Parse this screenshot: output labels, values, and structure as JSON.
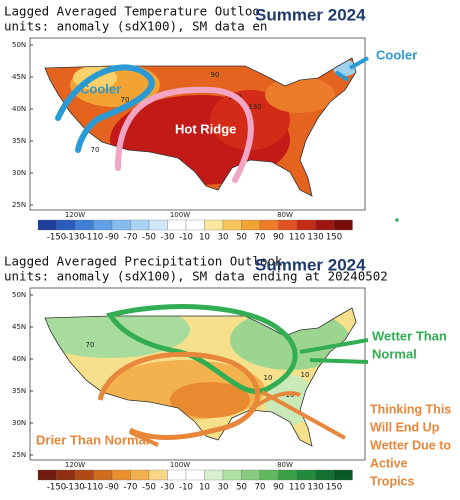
{
  "panels": [
    {
      "title": "Lagged Averaged Temperature Outloo",
      "subtitle": "units: anomaly (sdX100), SM data en",
      "overlay_title": "Summer 2024",
      "lat_labels": [
        "50N",
        "45N",
        "40N",
        "35N",
        "30N",
        "25N"
      ],
      "lon_labels": [
        "120W",
        "100W",
        "80W"
      ],
      "colorbar_labels": [
        -150,
        -130,
        -110,
        -90,
        -70,
        -50,
        -30,
        -10,
        10,
        30,
        50,
        70,
        90,
        110,
        130,
        150
      ],
      "contour_labels": [
        "90",
        "110",
        "130",
        "70",
        "70"
      ],
      "annotations": {
        "map_label": "Cooler",
        "side_label": "Cooler",
        "ridge_label": "Hot Ridge"
      }
    },
    {
      "title": "Lagged Averaged Precipitation Outlook",
      "subtitle": "units: anomaly (sdX100), SM data ending at 20240502",
      "overlay_title": "Summer 2024",
      "lat_labels": [
        "50N",
        "45N",
        "40N",
        "35N",
        "30N",
        "25N"
      ],
      "lon_labels": [
        "120W",
        "100W",
        "80W"
      ],
      "colorbar_labels": [
        -150,
        -130,
        -110,
        -90,
        -70,
        -50,
        -30,
        -10,
        10,
        30,
        50,
        70,
        90,
        110,
        130,
        150
      ],
      "contour_labels": [
        "70",
        "10",
        "10",
        "10"
      ],
      "annotations": {
        "wetter_lines": [
          "Wetter Than",
          "Normal"
        ],
        "drier_label": "Drier Than Normal",
        "tropics_lines": [
          "Thinking This",
          "Will End Up",
          "Wetter Due to",
          "Active",
          "Tropics"
        ]
      }
    }
  ]
}
